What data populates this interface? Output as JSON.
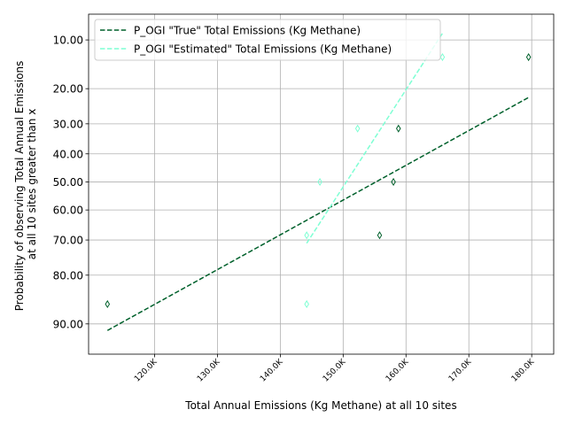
{
  "chart_data": {
    "type": "scatter",
    "xlabel": "Total Annual Emissions (Kg Methane) at all 10 sites",
    "ylabel_lines": [
      "Probability of observing Total Annual Emissions",
      "at all 10 sites greater than x"
    ],
    "x_tick_values": [
      120000,
      130000,
      140000,
      150000,
      160000,
      170000,
      180000
    ],
    "x_tick_labels": [
      "120.0K",
      "130.0K",
      "140.0K",
      "150.0K",
      "160.0K",
      "170.0K",
      "180.0K"
    ],
    "y_tick_values": [
      10,
      20,
      30,
      40,
      50,
      60,
      70,
      80,
      90
    ],
    "y_tick_labels": [
      "10.00",
      "20.00",
      "30.00",
      "40.00",
      "50.00",
      "60.00",
      "70.00",
      "80.00",
      "90.00"
    ],
    "y_scale": "probability (normal quantile), inverted",
    "xlim": [
      109500,
      183500
    ],
    "ylim": [
      6.5,
      94
    ],
    "grid": true,
    "legend_position": "top-left",
    "series": [
      {
        "name": "P_OGI \"True\" Total Emissions (Kg Methane)",
        "color": "#00602b",
        "marker": "thin_diamond",
        "points": [
          {
            "x": 112500,
            "y": 86.5
          },
          {
            "x": 155800,
            "y": 68.5
          },
          {
            "x": 158000,
            "y": 50.0
          },
          {
            "x": 158800,
            "y": 31.5
          },
          {
            "x": 179500,
            "y": 13.0
          }
        ],
        "fit_line": [
          {
            "x": 112500,
            "y": 91.0
          },
          {
            "x": 179500,
            "y": 22.3
          }
        ]
      },
      {
        "name": "P_OGI \"Estimated\" Total Emissions (Kg Methane)",
        "color": "#7fffd4",
        "marker": "thin_diamond",
        "points": [
          {
            "x": 144200,
            "y": 86.5
          },
          {
            "x": 144200,
            "y": 68.5
          },
          {
            "x": 146300,
            "y": 50.0
          },
          {
            "x": 152300,
            "y": 31.5
          },
          {
            "x": 165800,
            "y": 13.0
          }
        ],
        "fit_line": [
          {
            "x": 144200,
            "y": 71.0
          },
          {
            "x": 165800,
            "y": 9.0
          }
        ]
      }
    ]
  }
}
